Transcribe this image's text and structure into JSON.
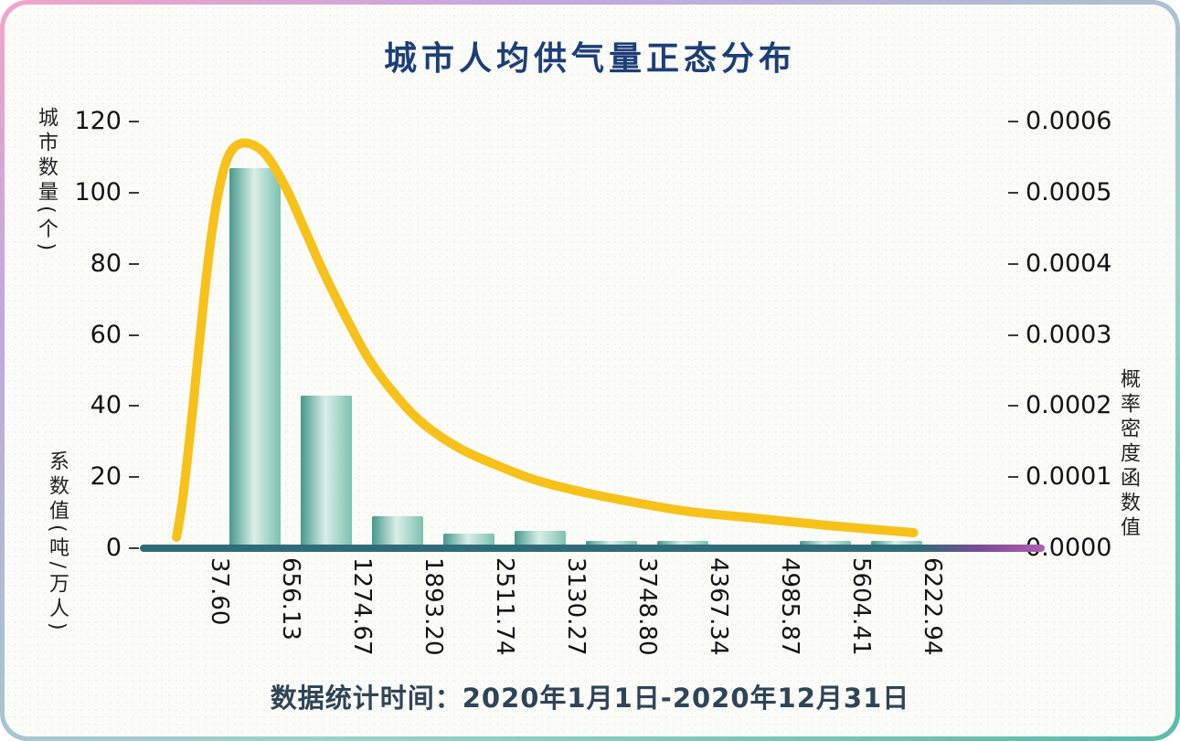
{
  "chart_data": {
    "type": "bar+line",
    "title": "城市人均供气量正态分布",
    "caption": "数据统计时间：2020年1月1日-2020年12月31日",
    "x_axis": {
      "label": "系数值(吨/万人)",
      "tick_labels": [
        "37.60",
        "656.13",
        "1274.67",
        "1893.20",
        "2511.74",
        "3130.27",
        "3748.80",
        "4367.34",
        "4985.87",
        "5604.41",
        "6222.94"
      ]
    },
    "left_axis": {
      "label": "城市数量(个)",
      "min": 0,
      "max": 120,
      "tick_labels": [
        "0",
        "20",
        "40",
        "60",
        "80",
        "100",
        "120"
      ]
    },
    "right_axis": {
      "label": "概率密度函数值",
      "min": 0,
      "max": 0.0006,
      "tick_labels": [
        "0.0000",
        "0.0001",
        "0.0002",
        "0.0003",
        "0.0004",
        "0.0005",
        "0.0006"
      ]
    },
    "bars": {
      "name": "城市数量(个)",
      "placement": "each bar spans between two consecutive x ticks (histogram bins)",
      "values": [
        107,
        43,
        9,
        4,
        5,
        2,
        2,
        1,
        2,
        2
      ]
    },
    "curve": {
      "name": "概率密度函数值",
      "points": [
        [
          -335,
          1.54e-05
        ],
        [
          -280,
          7.07e-05
        ],
        [
          -200,
          0.000186
        ],
        [
          -120,
          0.000315
        ],
        [
          -40,
          0.00043
        ],
        [
          38,
          0.000507
        ],
        [
          117,
          0.000552
        ],
        [
          220,
          0.000569
        ],
        [
          355,
          0.000565
        ],
        [
          474,
          0.000546
        ],
        [
          632,
          0.000501
        ],
        [
          791,
          0.000443
        ],
        [
          950,
          0.000385
        ],
        [
          1148,
          0.000321
        ],
        [
          1346,
          0.000263
        ],
        [
          1584,
          0.000212
        ],
        [
          1822,
          0.000173
        ],
        [
          2139,
          0.000139
        ],
        [
          2456,
          0.000116
        ],
        [
          2773,
          9.64e-05
        ],
        [
          3170,
          7.97e-05
        ],
        [
          3646,
          6.42e-05
        ],
        [
          4121,
          5.14e-05
        ],
        [
          4676,
          4.24e-05
        ],
        [
          5311,
          3.21e-05
        ],
        [
          6064,
          2.18e-05
        ]
      ]
    },
    "colors": {
      "title": "#1d3e76",
      "tick_text": "#141414",
      "bar_dark": "#47988b",
      "bar_light": "#d9efe8",
      "bar_mid": "#7dc0b0",
      "curve": "#f6c21a",
      "axis_line_teal": "#2e6d78",
      "axis_line_purple": "#7b4b96",
      "axis_line_magenta": "#b05fb0"
    }
  }
}
